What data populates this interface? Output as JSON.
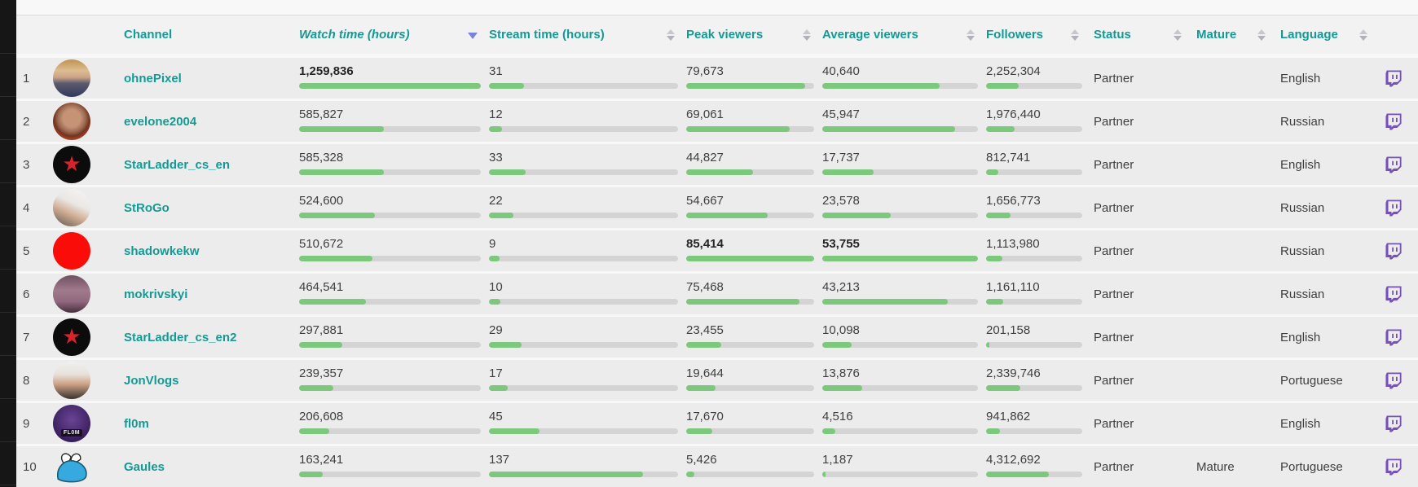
{
  "colors": {
    "accent_teal": "#149a94",
    "bar_green": "#7cc87c",
    "bar_track": "#d4d4d4",
    "sorted_arrow_purple": "#7b82dd",
    "unsorted_arrow_gray": "#c0c0c8",
    "twitch_purple": "#7550b9",
    "row_background": "#ececec",
    "side_strip_black": "#161616"
  },
  "table": {
    "columns": [
      {
        "key": "rank",
        "label": "",
        "sort": "none"
      },
      {
        "key": "avatar",
        "label": "",
        "sort": "none"
      },
      {
        "key": "channel",
        "label": "Channel",
        "sort": "none"
      },
      {
        "key": "watch",
        "label": "Watch time (hours)",
        "sort": "desc"
      },
      {
        "key": "stream",
        "label": "Stream time (hours)",
        "sort": "unsorted"
      },
      {
        "key": "peak",
        "label": "Peak viewers",
        "sort": "unsorted"
      },
      {
        "key": "avg",
        "label": "Average viewers",
        "sort": "unsorted"
      },
      {
        "key": "followers",
        "label": "Followers",
        "sort": "unsorted"
      },
      {
        "key": "status",
        "label": "Status",
        "sort": "unsorted"
      },
      {
        "key": "mature",
        "label": "Mature",
        "sort": "unsorted"
      },
      {
        "key": "language",
        "label": "Language",
        "sort": "unsorted"
      },
      {
        "key": "twitch",
        "label": "",
        "sort": "none"
      }
    ],
    "bar_scale_max": {
      "watch": 1259836,
      "stream": 168,
      "peak": 85414,
      "avg": 53755,
      "followers": 6600000
    },
    "rows": [
      {
        "rank": "1",
        "channel": "ohnePixel",
        "avatar": "photo-toddler",
        "watch": "1,259,836",
        "watch_v": 1259836,
        "watch_bold": true,
        "stream": "31",
        "stream_v": 31,
        "peak": "79,673",
        "peak_v": 79673,
        "avg": "40,640",
        "avg_v": 40640,
        "followers": "2,252,304",
        "followers_v": 2252304,
        "status": "Partner",
        "mature": "",
        "language": "English"
      },
      {
        "rank": "2",
        "channel": "evelone2004",
        "avatar": "photo-man-orange",
        "watch": "585,827",
        "watch_v": 585827,
        "stream": "12",
        "stream_v": 12,
        "peak": "69,061",
        "peak_v": 69061,
        "avg": "45,947",
        "avg_v": 45947,
        "followers": "1,976,440",
        "followers_v": 1976440,
        "status": "Partner",
        "mature": "",
        "language": "Russian"
      },
      {
        "rank": "3",
        "channel": "StarLadder_cs_en",
        "avatar": "starladder-logo",
        "avatar_glyph": "★",
        "watch": "585,328",
        "watch_v": 585328,
        "stream": "33",
        "stream_v": 33,
        "peak": "44,827",
        "peak_v": 44827,
        "avg": "17,737",
        "avg_v": 17737,
        "followers": "812,741",
        "followers_v": 812741,
        "status": "Partner",
        "mature": "",
        "language": "English"
      },
      {
        "rank": "4",
        "channel": "StRoGo",
        "avatar": "photo-hooded",
        "watch": "524,600",
        "watch_v": 524600,
        "stream": "22",
        "stream_v": 22,
        "peak": "54,667",
        "peak_v": 54667,
        "avg": "23,578",
        "avg_v": 23578,
        "followers": "1,656,773",
        "followers_v": 1656773,
        "status": "Partner",
        "mature": "",
        "language": "Russian"
      },
      {
        "rank": "5",
        "channel": "shadowkekw",
        "avatar": "red-circle",
        "watch": "510,672",
        "watch_v": 510672,
        "stream": "9",
        "stream_v": 9,
        "peak": "85,414",
        "peak_v": 85414,
        "peak_bold": true,
        "avg": "53,755",
        "avg_v": 53755,
        "avg_bold": true,
        "followers": "1,113,980",
        "followers_v": 1113980,
        "status": "Partner",
        "mature": "",
        "language": "Russian"
      },
      {
        "rank": "6",
        "channel": "mokrivskyi",
        "avatar": "photo-face-mauve",
        "watch": "464,541",
        "watch_v": 464541,
        "stream": "10",
        "stream_v": 10,
        "peak": "75,468",
        "peak_v": 75468,
        "avg": "43,213",
        "avg_v": 43213,
        "followers": "1,161,110",
        "followers_v": 1161110,
        "status": "Partner",
        "mature": "",
        "language": "Russian"
      },
      {
        "rank": "7",
        "channel": "StarLadder_cs_en2",
        "avatar": "starladder-logo",
        "avatar_glyph": "★",
        "watch": "297,881",
        "watch_v": 297881,
        "stream": "29",
        "stream_v": 29,
        "peak": "23,455",
        "peak_v": 23455,
        "avg": "10,098",
        "avg_v": 10098,
        "followers": "201,158",
        "followers_v": 201158,
        "status": "Partner",
        "mature": "",
        "language": "English"
      },
      {
        "rank": "8",
        "channel": "JonVlogs",
        "avatar": "photo-cap",
        "watch": "239,357",
        "watch_v": 239357,
        "stream": "17",
        "stream_v": 17,
        "peak": "19,644",
        "peak_v": 19644,
        "avg": "13,876",
        "avg_v": 13876,
        "followers": "2,339,746",
        "followers_v": 2339746,
        "status": "Partner",
        "mature": "",
        "language": "Portuguese"
      },
      {
        "rank": "9",
        "channel": "fl0m",
        "avatar": "fl0m-logo",
        "avatar_text": "FL0M",
        "watch": "206,608",
        "watch_v": 206608,
        "stream": "45",
        "stream_v": 45,
        "peak": "17,670",
        "peak_v": 17670,
        "avg": "4,516",
        "avg_v": 4516,
        "followers": "941,862",
        "followers_v": 941862,
        "status": "Partner",
        "mature": "",
        "language": "English"
      },
      {
        "rank": "10",
        "channel": "Gaules",
        "avatar": "gaules-shark",
        "watch": "163,241",
        "watch_v": 163241,
        "stream": "137",
        "stream_v": 137,
        "peak": "5,426",
        "peak_v": 5426,
        "avg": "1,187",
        "avg_v": 1187,
        "followers": "4,312,692",
        "followers_v": 4312692,
        "status": "Partner",
        "mature": "Mature",
        "language": "Portuguese"
      }
    ]
  }
}
